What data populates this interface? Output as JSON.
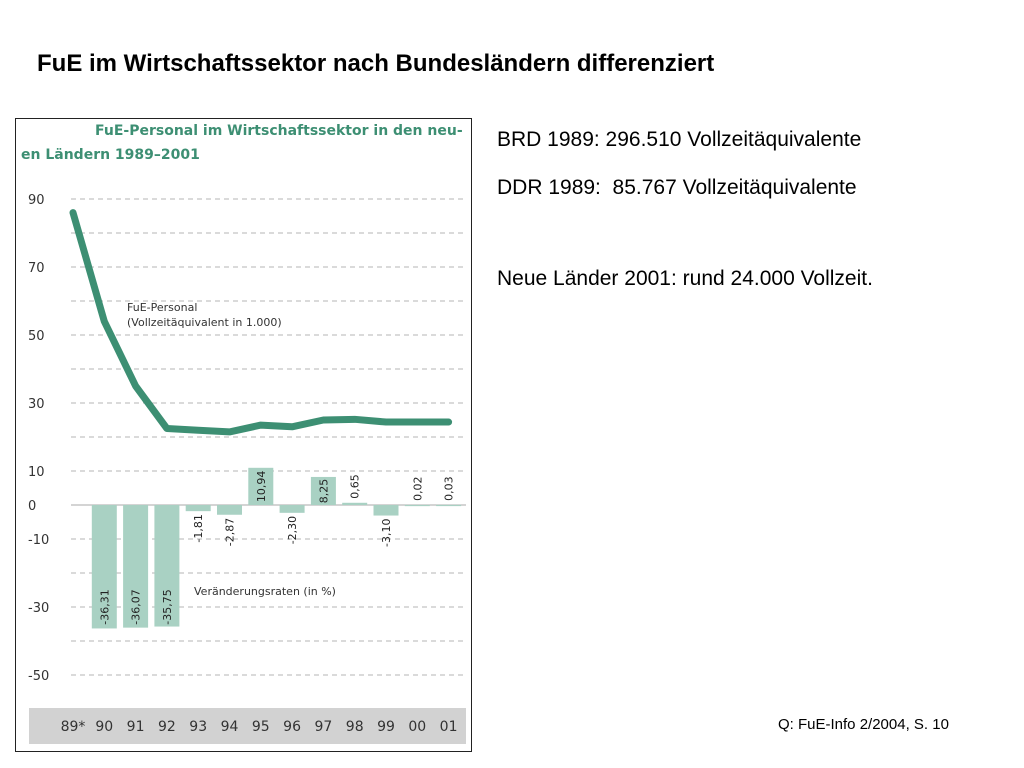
{
  "slide": {
    "title": "FuE im Wirtschaftssektor nach Bundesländern differenziert",
    "info_lines": [
      "BRD 1989: 296.510 Vollzeitäquivalente",
      "DDR 1989:  85.767 Vollzeitäquivalente",
      "Neue Länder 2001: rund 24.000 Vollzeit."
    ],
    "source": "Q: FuE-Info 2/2004, S. 10"
  },
  "colors": {
    "accent": "#3d8f73",
    "bar": "#a9d1c3",
    "axis_band": "#d2d2d2",
    "grid": "#b4b4b4"
  },
  "chart_data": {
    "type": "line",
    "title_lines": [
      "FuE-Personal im Wirtschaftssektor in den neu-",
      "en Ländern 1989–2001"
    ],
    "categories": [
      "89*",
      "90",
      "91",
      "92",
      "93",
      "94",
      "95",
      "96",
      "97",
      "98",
      "99",
      "00",
      "01"
    ],
    "y_ticks": [
      90,
      70,
      50,
      30,
      10,
      0,
      -10,
      -30,
      -50
    ],
    "ylim": [
      -55,
      95
    ],
    "grid": true,
    "series": [
      {
        "type": "line",
        "label_lines": [
          "FuE-Personal",
          "(Vollzeitäquivalent in 1.000)"
        ],
        "values": [
          86,
          54,
          35,
          22.5,
          22.0,
          21.5,
          23.5,
          23.0,
          25.0,
          25.2,
          24.4,
          24.4,
          24.4
        ]
      },
      {
        "type": "bar",
        "name": "Veränderungsraten (in %)",
        "values": [
          null,
          -36.31,
          -36.07,
          -35.75,
          -1.81,
          -2.87,
          10.94,
          -2.3,
          8.25,
          0.65,
          -3.1,
          0.02,
          0.03
        ],
        "labels": [
          "",
          "-36,31",
          "-36,07",
          "-35,75",
          "-1,81",
          "-2,87",
          "10,94",
          "-2,30",
          "8,25",
          "0,65",
          "-3,10",
          "0,02",
          "0,03"
        ]
      }
    ]
  }
}
